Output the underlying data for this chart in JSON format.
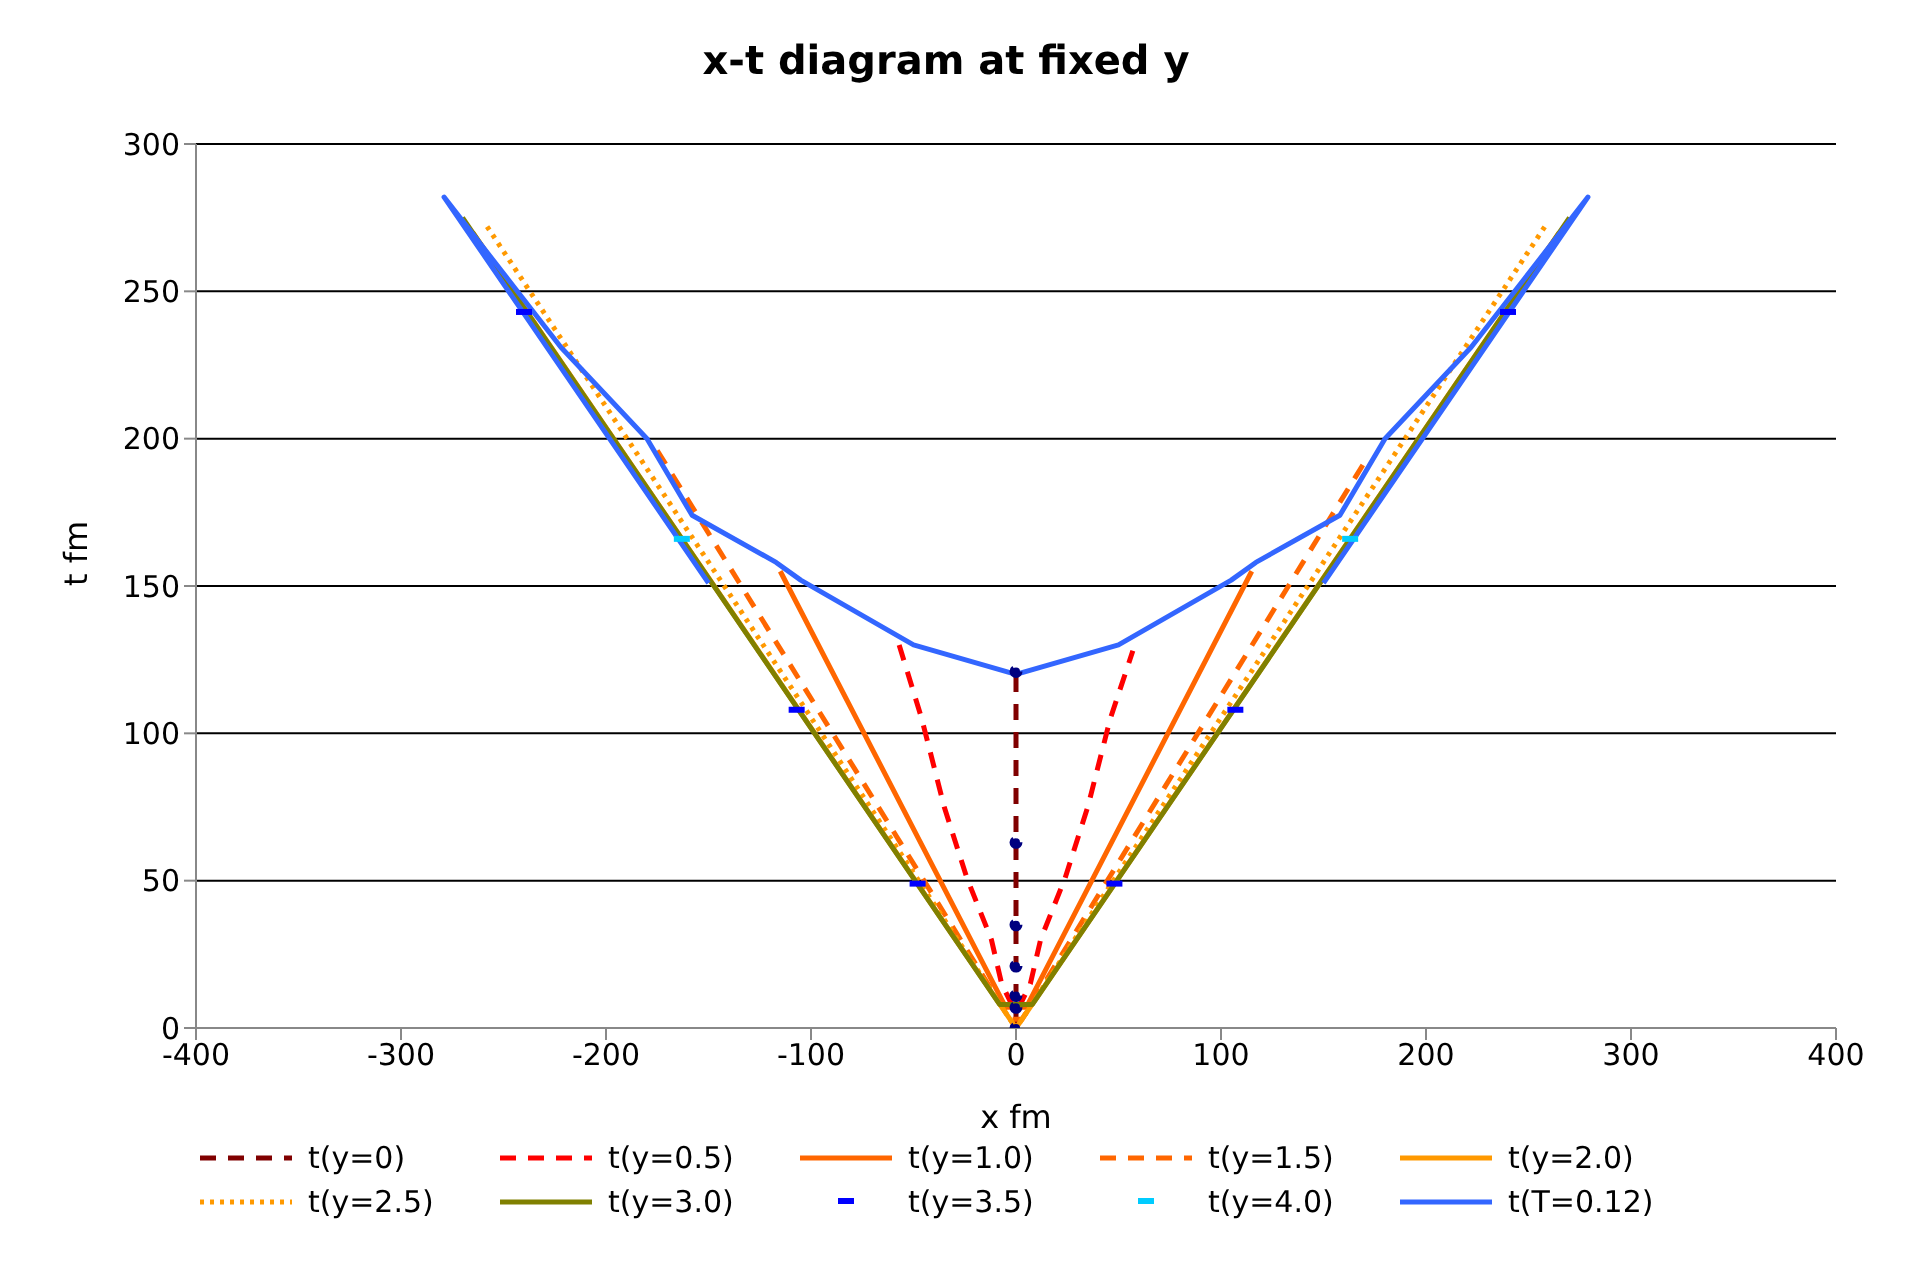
{
  "chart_data": {
    "type": "line",
    "title": "x-t diagram at fixed y",
    "xlabel": "x fm",
    "ylabel": "t fm",
    "xlim": [
      -400,
      400
    ],
    "xticks": [
      -400,
      -300,
      -200,
      -100,
      0,
      100,
      200,
      300,
      400
    ],
    "ylim": [
      0,
      300
    ],
    "yticks": [
      0,
      50,
      100,
      150,
      200,
      250,
      300
    ],
    "grid": "y",
    "legend": "bottom",
    "series": [
      {
        "name": "t(y=0)",
        "color": "#800000",
        "line_style": "dashed",
        "marker": "circle",
        "x": [
          0,
          0,
          0,
          0,
          0,
          0,
          0
        ],
        "values": [
          0,
          7,
          11,
          21,
          35,
          63,
          121
        ]
      },
      {
        "name": "t(y=0.5)",
        "color": "#ff0000",
        "line_style": "dashed",
        "marker": "none",
        "x": [
          -57,
          -46,
          -35,
          -24,
          -12,
          -7,
          0,
          7,
          12,
          24,
          35,
          46,
          57
        ],
        "values": [
          130,
          105,
          75,
          51,
          30,
          15,
          5,
          15,
          30,
          51,
          75,
          105,
          128
        ]
      },
      {
        "name": "t(y=1.0)",
        "color": "#ff6600",
        "line_style": "solid",
        "marker": "none",
        "x": [
          -115,
          -5,
          5,
          115
        ],
        "values": [
          155,
          7,
          7,
          155
        ]
      },
      {
        "name": "t(y=1.5)",
        "color": "#ff6600",
        "line_style": "dashed",
        "marker": "none",
        "x": [
          -175,
          -3,
          3,
          170
        ],
        "values": [
          196,
          3,
          3,
          192
        ]
      },
      {
        "name": "t(y=2.0)",
        "color": "#ff9900",
        "line_style": "solid",
        "marker": "none",
        "x": [
          -265,
          0,
          265
        ],
        "values": [
          270,
          0,
          270
        ]
      },
      {
        "name": "t(y=2.5)",
        "color": "#ff9900",
        "line_style": "dotted",
        "marker": "none",
        "x": [
          -258,
          -2,
          2,
          258
        ],
        "values": [
          272,
          2,
          2,
          272
        ]
      },
      {
        "name": "t(y=3.0)",
        "color": "#808000",
        "line_style": "solid",
        "marker": "none",
        "x": [
          -270,
          -8,
          8,
          270
        ],
        "values": [
          275,
          8,
          8,
          275
        ]
      },
      {
        "name": "t(y=3.5)",
        "type": "scatter",
        "color": "#0000ff",
        "marker": "square",
        "x": [
          -240,
          -107,
          -48,
          48,
          107,
          240
        ],
        "values": [
          243,
          108,
          49,
          49,
          108,
          243
        ]
      },
      {
        "name": "t(y=4.0)",
        "type": "scatter",
        "color": "#00ccff",
        "marker": "square",
        "x": [
          -163,
          163
        ],
        "values": [
          166,
          166
        ]
      },
      {
        "name": "t(T=0.12)",
        "color": "#3366ff",
        "line_style": "solid",
        "marker": "none",
        "x": [
          -150,
          -279,
          -222,
          -180,
          -158,
          -117,
          -105,
          -50,
          0,
          50,
          105,
          117,
          158,
          180,
          222,
          279,
          150
        ],
        "values": [
          151,
          282,
          231,
          200,
          174,
          158,
          152,
          130,
          120,
          130,
          152,
          158,
          174,
          200,
          231,
          282,
          151
        ]
      }
    ]
  }
}
